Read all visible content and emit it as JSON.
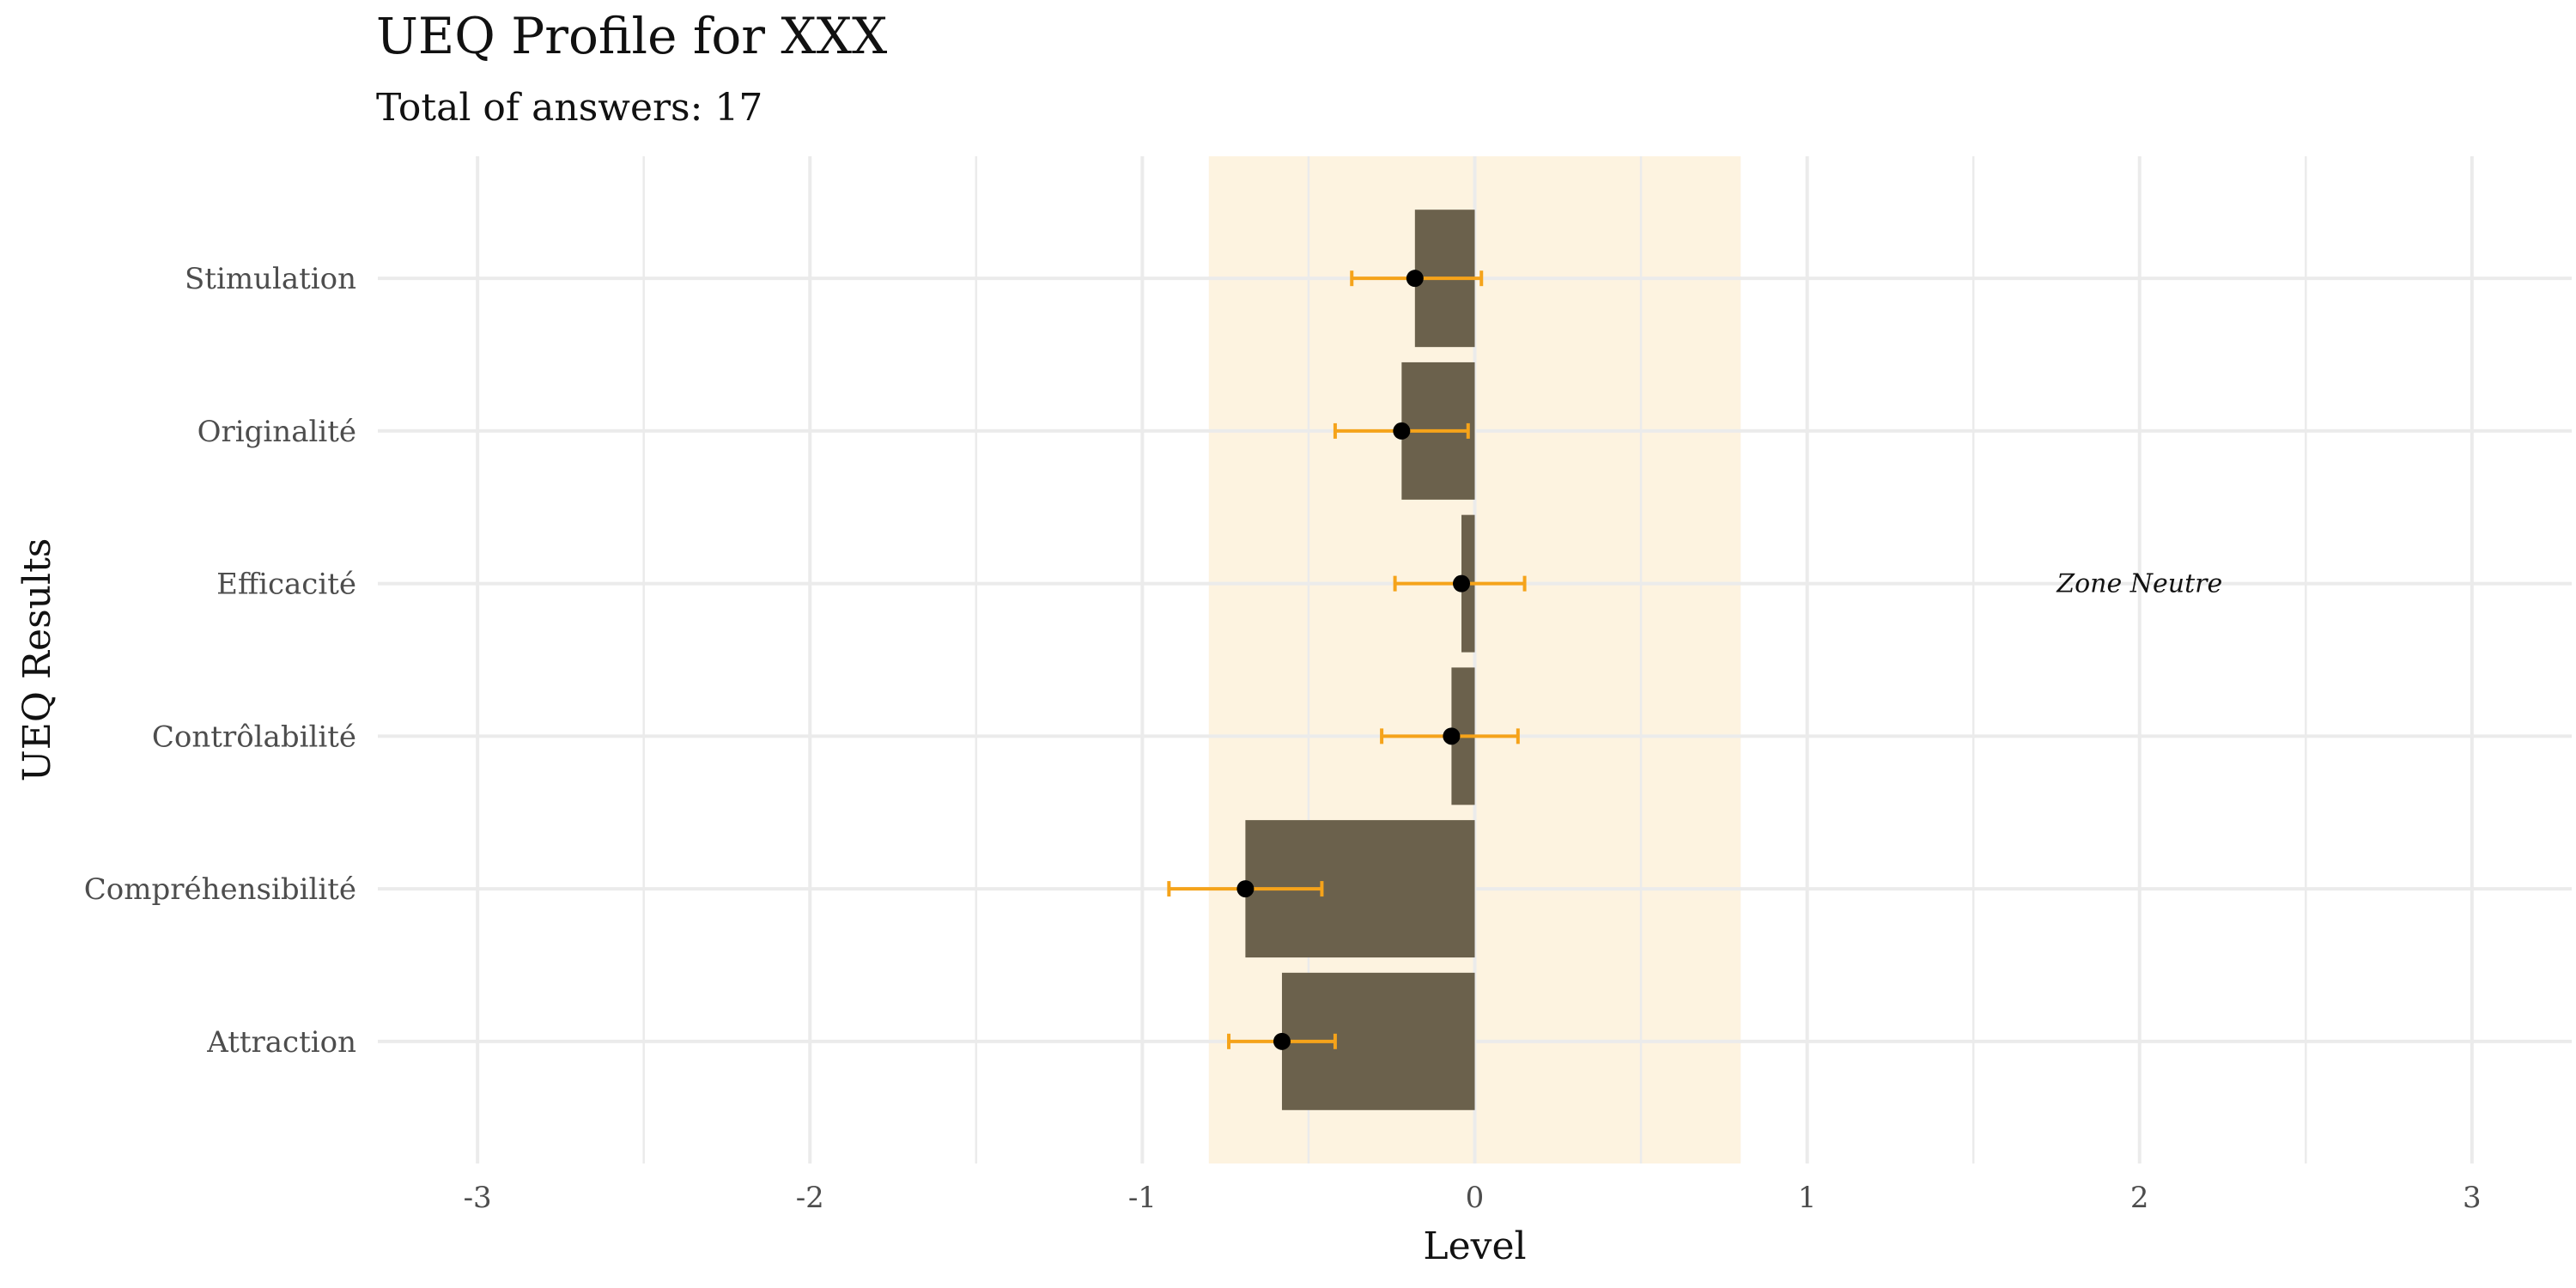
{
  "chart_data": {
    "type": "bar",
    "orientation": "horizontal",
    "title": "UEQ Profile for XXX",
    "subtitle": "Total of answers: 17",
    "xlabel": "Level",
    "ylabel": "UEQ Results",
    "categories": [
      "Attraction",
      "Compréhensibilité",
      "Contrôlabilité",
      "Efficacité",
      "Originalité",
      "Stimulation"
    ],
    "values": [
      -0.58,
      -0.69,
      -0.07,
      -0.04,
      -0.22,
      -0.18
    ],
    "error_low": [
      -0.74,
      -0.92,
      -0.28,
      -0.24,
      -0.42,
      -0.37
    ],
    "error_high": [
      -0.42,
      -0.46,
      0.13,
      0.15,
      -0.02,
      0.02
    ],
    "xlim": [
      -3.3,
      3.3
    ],
    "xticks": [
      -3,
      -2,
      -1,
      0,
      1,
      2,
      3
    ],
    "neutral_zone": {
      "from": -0.8,
      "to": 0.8,
      "label": "Zone Neutre",
      "label_x": 2
    },
    "grid": true,
    "colors": {
      "bar": "#6b614c",
      "error": "#f5a31a",
      "point": "#000000",
      "zone": "#fdf3e0",
      "grid": "#ebebeb"
    }
  }
}
